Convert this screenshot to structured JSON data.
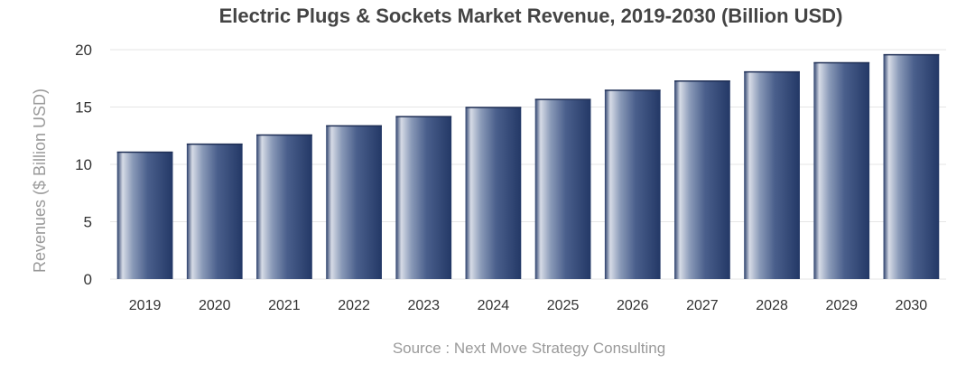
{
  "chart_data": {
    "type": "bar",
    "title": "Electric Plugs & Sockets Market Revenue, 2019-2030 (Billion USD)",
    "xlabel": "",
    "ylabel": "Revenues ($ Billion USD)",
    "source": "Source : Next Move Strategy Consulting",
    "categories": [
      "2019",
      "2020",
      "2021",
      "2022",
      "2023",
      "2024",
      "2025",
      "2026",
      "2027",
      "2028",
      "2029",
      "2030"
    ],
    "values": [
      11.1,
      11.8,
      12.6,
      13.4,
      14.2,
      15.0,
      15.7,
      16.5,
      17.3,
      18.1,
      18.9,
      19.6
    ],
    "ylim": [
      0,
      20
    ],
    "yticks": [
      0,
      5,
      10,
      15,
      20
    ],
    "grid": true,
    "legend": "none",
    "colors": {
      "bar_dark": "#2b3f6b",
      "bar_light": "#d6dbe6",
      "grid": "#e6e6e6"
    }
  }
}
